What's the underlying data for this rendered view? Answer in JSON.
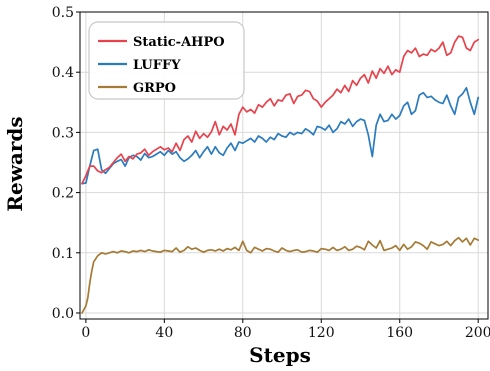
{
  "chart_data": {
    "type": "line",
    "xlabel": "Steps",
    "ylabel": "Rewards",
    "xlim": [
      -3,
      205
    ],
    "ylim": [
      -0.01,
      0.5
    ],
    "xticks": [
      0,
      40,
      80,
      120,
      160,
      200
    ],
    "yticks": [
      0.0,
      0.1,
      0.2,
      0.3,
      0.4,
      0.5
    ],
    "xtick_labels": [
      "0",
      "40",
      "80",
      "120",
      "160",
      "200"
    ],
    "ytick_labels": [
      "0.0",
      "0.1",
      "0.2",
      "0.3",
      "0.4",
      "0.5"
    ],
    "grid": true,
    "legend_position": "top-left",
    "series": [
      {
        "name": "Static-AHPO",
        "color": "#e8424c",
        "x": [
          -2,
          0,
          2,
          4,
          6,
          8,
          10,
          12,
          14,
          16,
          18,
          20,
          22,
          24,
          26,
          28,
          30,
          32,
          34,
          36,
          38,
          40,
          42,
          44,
          46,
          48,
          50,
          52,
          54,
          56,
          58,
          60,
          62,
          64,
          66,
          68,
          70,
          72,
          74,
          76,
          78,
          80,
          82,
          84,
          86,
          88,
          90,
          92,
          94,
          96,
          98,
          100,
          102,
          104,
          106,
          108,
          110,
          112,
          114,
          116,
          118,
          120,
          122,
          124,
          126,
          128,
          130,
          132,
          134,
          136,
          138,
          140,
          142,
          144,
          146,
          148,
          150,
          152,
          154,
          156,
          158,
          160,
          162,
          164,
          166,
          168,
          170,
          172,
          174,
          176,
          178,
          180,
          182,
          184,
          186,
          188,
          190,
          192,
          194,
          196,
          198,
          200
        ],
        "values": [
          0.215,
          0.228,
          0.244,
          0.244,
          0.236,
          0.233,
          0.238,
          0.242,
          0.25,
          0.258,
          0.264,
          0.252,
          0.26,
          0.256,
          0.264,
          0.266,
          0.272,
          0.262,
          0.268,
          0.272,
          0.276,
          0.271,
          0.274,
          0.268,
          0.282,
          0.27,
          0.288,
          0.294,
          0.284,
          0.302,
          0.29,
          0.298,
          0.292,
          0.301,
          0.318,
          0.296,
          0.31,
          0.304,
          0.314,
          0.296,
          0.33,
          0.342,
          0.334,
          0.338,
          0.332,
          0.346,
          0.342,
          0.35,
          0.356,
          0.344,
          0.354,
          0.352,
          0.362,
          0.364,
          0.348,
          0.36,
          0.362,
          0.37,
          0.368,
          0.356,
          0.352,
          0.342,
          0.35,
          0.356,
          0.362,
          0.372,
          0.366,
          0.378,
          0.368,
          0.386,
          0.378,
          0.39,
          0.396,
          0.382,
          0.402,
          0.39,
          0.406,
          0.398,
          0.41,
          0.396,
          0.404,
          0.4,
          0.426,
          0.436,
          0.432,
          0.44,
          0.426,
          0.43,
          0.428,
          0.438,
          0.434,
          0.44,
          0.45,
          0.428,
          0.432,
          0.45,
          0.46,
          0.458,
          0.44,
          0.436,
          0.45,
          0.454
        ]
      },
      {
        "name": "LUFFY",
        "color": "#2b7bbf",
        "x": [
          -2,
          0,
          2,
          4,
          6,
          8,
          10,
          12,
          14,
          16,
          18,
          20,
          22,
          24,
          26,
          28,
          30,
          32,
          34,
          36,
          38,
          40,
          42,
          44,
          46,
          48,
          50,
          52,
          54,
          56,
          58,
          60,
          62,
          64,
          66,
          68,
          70,
          72,
          74,
          76,
          78,
          80,
          82,
          84,
          86,
          88,
          90,
          92,
          94,
          96,
          98,
          100,
          102,
          104,
          106,
          108,
          110,
          112,
          114,
          116,
          118,
          120,
          122,
          124,
          126,
          128,
          130,
          132,
          134,
          136,
          138,
          140,
          142,
          144,
          146,
          148,
          150,
          152,
          154,
          156,
          158,
          160,
          162,
          164,
          166,
          168,
          170,
          172,
          174,
          176,
          178,
          180,
          182,
          184,
          186,
          188,
          190,
          192,
          194,
          196,
          198,
          200
        ],
        "values": [
          0.215,
          0.216,
          0.244,
          0.27,
          0.272,
          0.238,
          0.232,
          0.24,
          0.248,
          0.252,
          0.255,
          0.244,
          0.258,
          0.262,
          0.26,
          0.254,
          0.265,
          0.258,
          0.26,
          0.264,
          0.268,
          0.262,
          0.27,
          0.264,
          0.268,
          0.258,
          0.252,
          0.256,
          0.262,
          0.27,
          0.258,
          0.268,
          0.276,
          0.264,
          0.276,
          0.266,
          0.262,
          0.274,
          0.282,
          0.27,
          0.284,
          0.282,
          0.286,
          0.29,
          0.284,
          0.294,
          0.29,
          0.284,
          0.292,
          0.288,
          0.298,
          0.294,
          0.292,
          0.3,
          0.296,
          0.3,
          0.298,
          0.306,
          0.302,
          0.296,
          0.31,
          0.308,
          0.304,
          0.312,
          0.3,
          0.306,
          0.318,
          0.314,
          0.322,
          0.31,
          0.318,
          0.322,
          0.32,
          0.296,
          0.26,
          0.312,
          0.33,
          0.318,
          0.32,
          0.33,
          0.322,
          0.328,
          0.344,
          0.35,
          0.33,
          0.336,
          0.362,
          0.366,
          0.358,
          0.36,
          0.354,
          0.35,
          0.348,
          0.362,
          0.344,
          0.33,
          0.358,
          0.364,
          0.374,
          0.35,
          0.33,
          0.358
        ]
      },
      {
        "name": "GRPO",
        "color": "#a57a35",
        "x": [
          -2,
          0,
          1,
          2,
          3,
          4,
          6,
          8,
          10,
          12,
          14,
          16,
          18,
          20,
          22,
          24,
          26,
          28,
          30,
          32,
          34,
          36,
          38,
          40,
          42,
          44,
          46,
          48,
          50,
          52,
          54,
          56,
          58,
          60,
          62,
          64,
          66,
          68,
          70,
          72,
          74,
          76,
          78,
          80,
          82,
          84,
          86,
          88,
          90,
          92,
          94,
          96,
          98,
          100,
          102,
          104,
          106,
          108,
          110,
          112,
          114,
          116,
          118,
          120,
          122,
          124,
          126,
          128,
          130,
          132,
          134,
          136,
          138,
          140,
          142,
          144,
          146,
          148,
          150,
          152,
          154,
          156,
          158,
          160,
          162,
          164,
          166,
          168,
          170,
          172,
          174,
          176,
          178,
          180,
          182,
          184,
          186,
          188,
          190,
          192,
          194,
          196,
          198,
          200
        ],
        "values": [
          0.0,
          0.012,
          0.025,
          0.05,
          0.07,
          0.085,
          0.095,
          0.1,
          0.098,
          0.1,
          0.102,
          0.1,
          0.103,
          0.102,
          0.1,
          0.103,
          0.102,
          0.104,
          0.102,
          0.105,
          0.103,
          0.102,
          0.101,
          0.104,
          0.103,
          0.102,
          0.108,
          0.101,
          0.104,
          0.11,
          0.106,
          0.108,
          0.104,
          0.101,
          0.104,
          0.105,
          0.103,
          0.106,
          0.103,
          0.107,
          0.105,
          0.109,
          0.104,
          0.119,
          0.104,
          0.1,
          0.109,
          0.106,
          0.103,
          0.107,
          0.106,
          0.103,
          0.101,
          0.108,
          0.104,
          0.102,
          0.104,
          0.105,
          0.101,
          0.102,
          0.104,
          0.103,
          0.101,
          0.107,
          0.106,
          0.104,
          0.109,
          0.104,
          0.106,
          0.11,
          0.104,
          0.106,
          0.111,
          0.109,
          0.105,
          0.119,
          0.113,
          0.108,
          0.12,
          0.104,
          0.106,
          0.108,
          0.112,
          0.104,
          0.114,
          0.106,
          0.11,
          0.118,
          0.116,
          0.112,
          0.106,
          0.118,
          0.115,
          0.112,
          0.114,
          0.119,
          0.112,
          0.12,
          0.125,
          0.118,
          0.124,
          0.113,
          0.124,
          0.121
        ]
      }
    ]
  }
}
